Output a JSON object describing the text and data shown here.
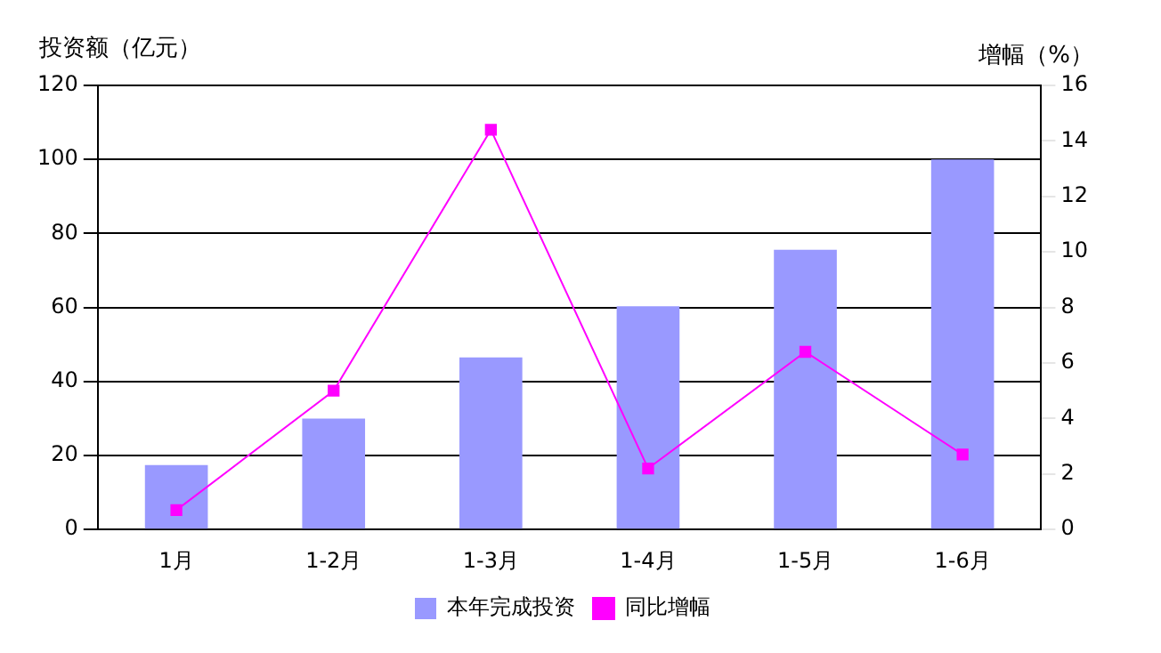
{
  "chart_data": {
    "type": "bar",
    "ylabel": "投资额（亿元）",
    "y2label": "增幅（%）",
    "categories": [
      "1月",
      "1-2月",
      "1-3月",
      "1-4月",
      "1-5月",
      "1-6月"
    ],
    "series": [
      {
        "name": "本年完成投资",
        "color": "#9999ff",
        "values": [
          17.4,
          30,
          46.5,
          60.3,
          75.6,
          100
        ]
      },
      {
        "name": "同比增幅",
        "type": "line",
        "axis": "y2",
        "color": "#ff00ff",
        "marker": "square",
        "values": [
          0.7,
          5.0,
          14.4,
          2.2,
          6.4,
          2.7
        ]
      }
    ],
    "ylim": [
      0,
      120
    ],
    "yticks": [
      0,
      20,
      40,
      60,
      80,
      100,
      120
    ],
    "y2lim": [
      0,
      16
    ],
    "y2ticks": [
      0,
      2,
      4,
      6,
      8,
      10,
      12,
      14,
      16
    ],
    "grid": "y",
    "legend": "bottom"
  }
}
